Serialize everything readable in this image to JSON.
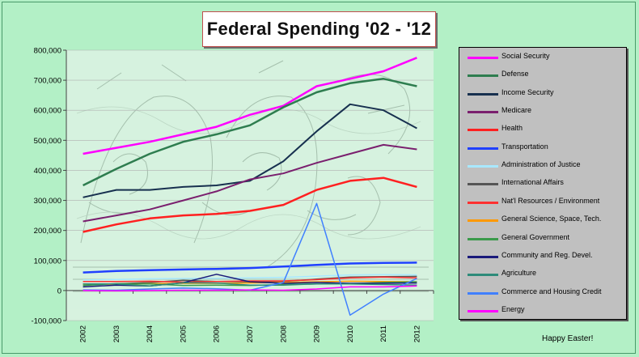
{
  "chart_data": {
    "type": "line",
    "title": "Federal Spending '02 - '12",
    "x": [
      "2002",
      "2003",
      "2004",
      "2005",
      "2006",
      "2007",
      "2008",
      "2009",
      "2010",
      "2011",
      "2012"
    ],
    "ylim": [
      -100000,
      800000
    ],
    "yticks": [
      -100000,
      0,
      100000,
      200000,
      300000,
      400000,
      500000,
      600000,
      700000,
      800000
    ],
    "ytick_labels": [
      "-100,000",
      "0",
      "100,000",
      "200,000",
      "300,000",
      "400,000",
      "500,000",
      "600,000",
      "700,000",
      "800,000"
    ],
    "legend_position": "right",
    "series": [
      {
        "name": "Social Security",
        "color": "#ff00ff",
        "width": 2.5,
        "values": [
          455000,
          475000,
          495000,
          520000,
          545000,
          585000,
          615000,
          680000,
          705000,
          730000,
          775000
        ]
      },
      {
        "name": "Defense",
        "color": "#2e7d4f",
        "width": 2.5,
        "values": [
          350000,
          405000,
          455000,
          495000,
          520000,
          550000,
          610000,
          660000,
          690000,
          705000,
          680000
        ]
      },
      {
        "name": "Income Security",
        "color": "#17304f",
        "width": 2,
        "values": [
          310000,
          335000,
          335000,
          345000,
          350000,
          365000,
          430000,
          530000,
          620000,
          600000,
          540000
        ]
      },
      {
        "name": "Medicare",
        "color": "#7a1f6e",
        "width": 2,
        "values": [
          230000,
          250000,
          270000,
          300000,
          330000,
          370000,
          390000,
          425000,
          455000,
          485000,
          470000
        ]
      },
      {
        "name": "Health",
        "color": "#ff2020",
        "width": 2.5,
        "values": [
          195000,
          220000,
          240000,
          250000,
          255000,
          265000,
          285000,
          335000,
          365000,
          375000,
          345000
        ]
      },
      {
        "name": "Transportation",
        "color": "#2040ff",
        "width": 2.5,
        "values": [
          60000,
          65000,
          68000,
          70000,
          72000,
          75000,
          80000,
          85000,
          90000,
          92000,
          93000
        ]
      },
      {
        "name": "Administration of Justice",
        "color": "#a8e8ff",
        "width": 1.5,
        "values": [
          35000,
          37000,
          39000,
          40000,
          41000,
          42000,
          44000,
          48000,
          52000,
          53000,
          52000
        ]
      },
      {
        "name": "International Affairs",
        "color": "#555555",
        "width": 1.5,
        "values": [
          22000,
          22000,
          27000,
          34000,
          30000,
          29000,
          30000,
          38000,
          45000,
          46000,
          47000
        ]
      },
      {
        "name": "Nat'l Resources / Environment",
        "color": "#ff3030",
        "width": 1.5,
        "values": [
          30000,
          30000,
          31000,
          28000,
          30000,
          32000,
          32000,
          36000,
          42000,
          45000,
          42000
        ]
      },
      {
        "name": "General Science, Space, Tech.",
        "color": "#ff9900",
        "width": 1.5,
        "values": [
          21000,
          21000,
          23000,
          24000,
          24000,
          25000,
          27000,
          29000,
          31000,
          30000,
          29000
        ]
      },
      {
        "name": "General Government",
        "color": "#3a9a4a",
        "width": 1.5,
        "values": [
          17000,
          23000,
          22000,
          17000,
          18000,
          17000,
          20000,
          22000,
          23000,
          27000,
          29000
        ]
      },
      {
        "name": "Community and Reg. Devel.",
        "color": "#1a1a7a",
        "width": 1.5,
        "values": [
          12000,
          18000,
          15000,
          26000,
          54000,
          29000,
          24000,
          27000,
          24000,
          24000,
          25000
        ]
      },
      {
        "name": "Agriculture",
        "color": "#2e8b7a",
        "width": 1.5,
        "values": [
          22000,
          22000,
          15000,
          26000,
          25000,
          18000,
          18000,
          22000,
          22000,
          20000,
          18000
        ]
      },
      {
        "name": "Commerce and Housing Credit",
        "color": "#4080ff",
        "width": 1.5,
        "values": [
          2000,
          1000,
          5000,
          8000,
          6000,
          1000,
          27000,
          290000,
          -82000,
          -12000,
          40000
        ]
      },
      {
        "name": "Energy",
        "color": "#ff00ff",
        "width": 1.5,
        "values": [
          0,
          -1000,
          0,
          1000,
          1000,
          2000,
          1000,
          5000,
          12000,
          12000,
          15000
        ]
      }
    ]
  },
  "footer": {
    "note": "Happy Easter!"
  }
}
